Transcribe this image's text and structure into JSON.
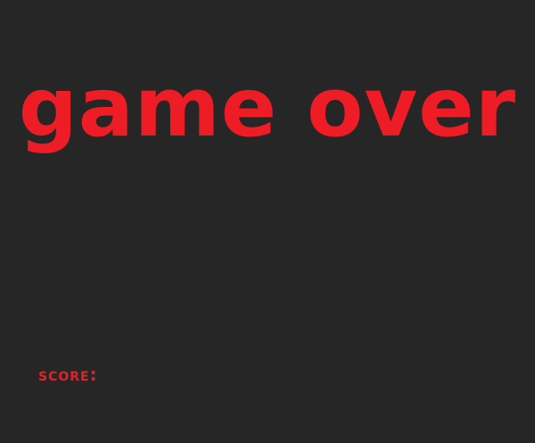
{
  "game": {
    "title": "game over",
    "score_label": "SCORE:"
  },
  "colors": {
    "background": "#262626",
    "title": "#ee1c25",
    "score_label": "#e0232b"
  }
}
